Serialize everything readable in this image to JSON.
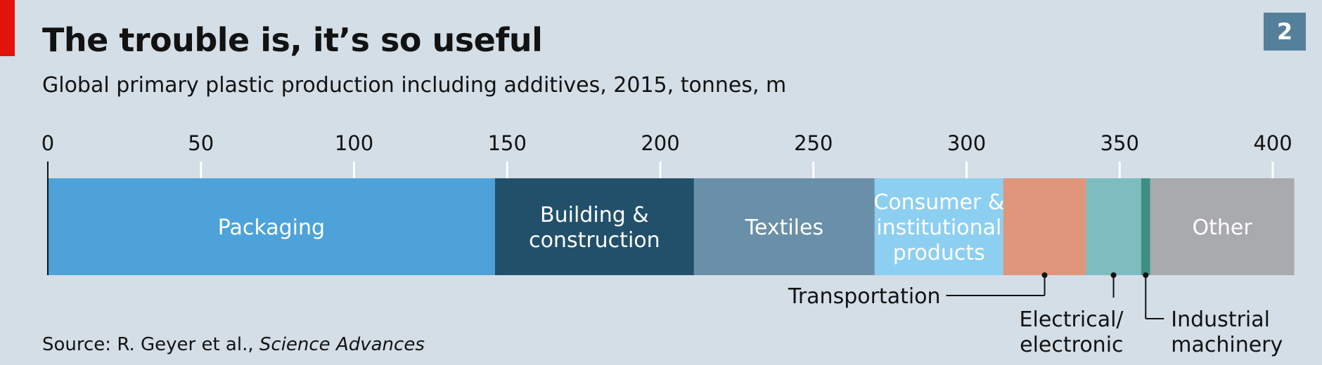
{
  "header": {
    "title": "The trouble is, it’s so useful",
    "subtitle": "Global primary plastic production including additives, 2015, tonnes, m",
    "chart_number": "2"
  },
  "footer": {
    "source_prefix": "Source: R. Geyer et al., ",
    "source_journal": "Science Advances"
  },
  "colors": {
    "background": "#d3dee6",
    "brand_red": "#e3120b",
    "badge": "#55809c"
  },
  "chart_data": {
    "type": "bar",
    "orientation": "horizontal-stacked",
    "title": "The trouble is, it’s so useful",
    "subtitle": "Global primary plastic production including additives, 2015, tonnes, m",
    "xlim": [
      0,
      400
    ],
    "ticks": [
      0,
      50,
      100,
      150,
      200,
      250,
      300,
      350,
      400
    ],
    "grid": false,
    "series": [
      {
        "label_lines": [
          "Packaging"
        ],
        "value": 146,
        "color": "#4da3d9",
        "label_position": "inside",
        "label_color": "#ffffff"
      },
      {
        "label_lines": [
          "Building &",
          "construction"
        ],
        "value": 65,
        "color": "#22506b",
        "label_position": "inside",
        "label_color": "#ffffff"
      },
      {
        "label_lines": [
          "Textiles"
        ],
        "value": 59,
        "color": "#6a8fa8",
        "label_position": "inside",
        "label_color": "#ffffff"
      },
      {
        "label_lines": [
          "Consumer &",
          "institutional",
          "products"
        ],
        "value": 42,
        "color": "#8dcff1",
        "label_position": "inside",
        "label_color": "#ffffff"
      },
      {
        "label_lines": [
          "Transportation"
        ],
        "value": 27,
        "color": "#e0967b",
        "label_position": "callout-left",
        "label_color": "#121212"
      },
      {
        "label_lines": [
          "Electrical/",
          "electronic"
        ],
        "value": 18,
        "color": "#7fbcc0",
        "label_position": "callout-below",
        "label_color": "#121212"
      },
      {
        "label_lines": [
          "Industrial",
          "machinery"
        ],
        "value": 3,
        "color": "#3d8f86",
        "label_position": "callout-right",
        "label_color": "#121212"
      },
      {
        "label_lines": [
          "Other"
        ],
        "value": 47,
        "color": "#a9aaad",
        "label_position": "inside",
        "label_color": "#ffffff"
      }
    ]
  }
}
